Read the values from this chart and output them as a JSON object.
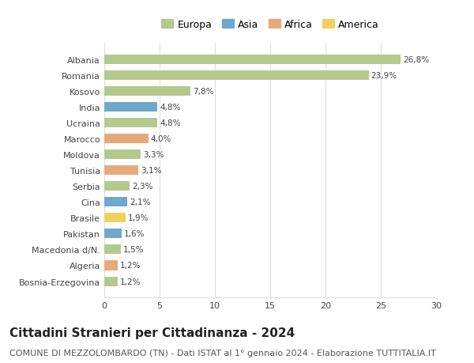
{
  "categories": [
    "Albania",
    "Romania",
    "Kosovo",
    "India",
    "Ucraina",
    "Marocco",
    "Moldova",
    "Tunisia",
    "Serbia",
    "Cina",
    "Brasile",
    "Pakistan",
    "Macedonia d/N.",
    "Algeria",
    "Bosnia-Erzegovina"
  ],
  "values": [
    26.8,
    23.9,
    7.8,
    4.8,
    4.8,
    4.0,
    3.3,
    3.1,
    2.3,
    2.1,
    1.9,
    1.6,
    1.5,
    1.2,
    1.2
  ],
  "labels": [
    "26,8%",
    "23,9%",
    "7,8%",
    "4,8%",
    "4,8%",
    "4,0%",
    "3,3%",
    "3,1%",
    "2,3%",
    "2,1%",
    "1,9%",
    "1,6%",
    "1,5%",
    "1,2%",
    "1,2%"
  ],
  "continents": [
    "Europa",
    "Europa",
    "Europa",
    "Asia",
    "Europa",
    "Africa",
    "Europa",
    "Africa",
    "Europa",
    "Asia",
    "America",
    "Asia",
    "Europa",
    "Africa",
    "Europa"
  ],
  "continent_colors": {
    "Europa": "#b5c98e",
    "Asia": "#6fa8cc",
    "Africa": "#e8a97a",
    "America": "#f0d060"
  },
  "legend_order": [
    "Europa",
    "Asia",
    "Africa",
    "America"
  ],
  "xlim": [
    0,
    30
  ],
  "xticks": [
    0,
    5,
    10,
    15,
    20,
    25,
    30
  ],
  "title": "Cittadini Stranieri per Cittadinanza - 2024",
  "subtitle": "COMUNE DI MEZZOLOMBARDO (TN) - Dati ISTAT al 1° gennaio 2024 - Elaborazione TUTTITALIA.IT",
  "title_fontsize": 11,
  "subtitle_fontsize": 8,
  "background_color": "#ffffff",
  "grid_color": "#dddddd",
  "bar_height": 0.6
}
